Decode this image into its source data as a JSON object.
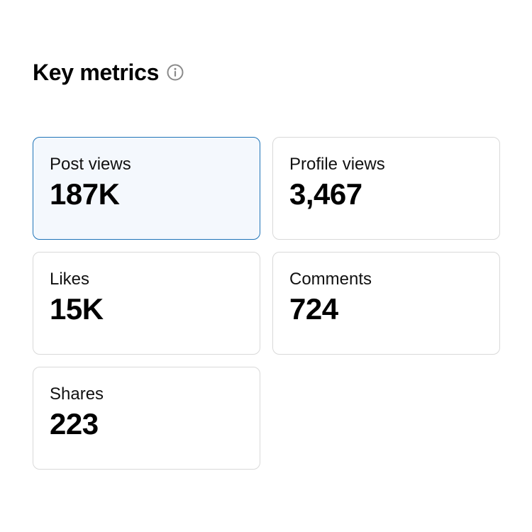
{
  "header": {
    "title": "Key metrics",
    "info_icon": "info-circle-icon"
  },
  "colors": {
    "selected_border": "#1f74b8",
    "selected_background": "#f4f8fd",
    "card_border": "#d9d9d9",
    "icon_gray": "#8a8a8a"
  },
  "metrics": [
    {
      "label": "Post views",
      "value": "187K",
      "selected": true
    },
    {
      "label": "Profile views",
      "value": "3,467",
      "selected": false
    },
    {
      "label": "Likes",
      "value": "15K",
      "selected": false
    },
    {
      "label": "Comments",
      "value": "724",
      "selected": false
    },
    {
      "label": "Shares",
      "value": "223",
      "selected": false
    }
  ]
}
